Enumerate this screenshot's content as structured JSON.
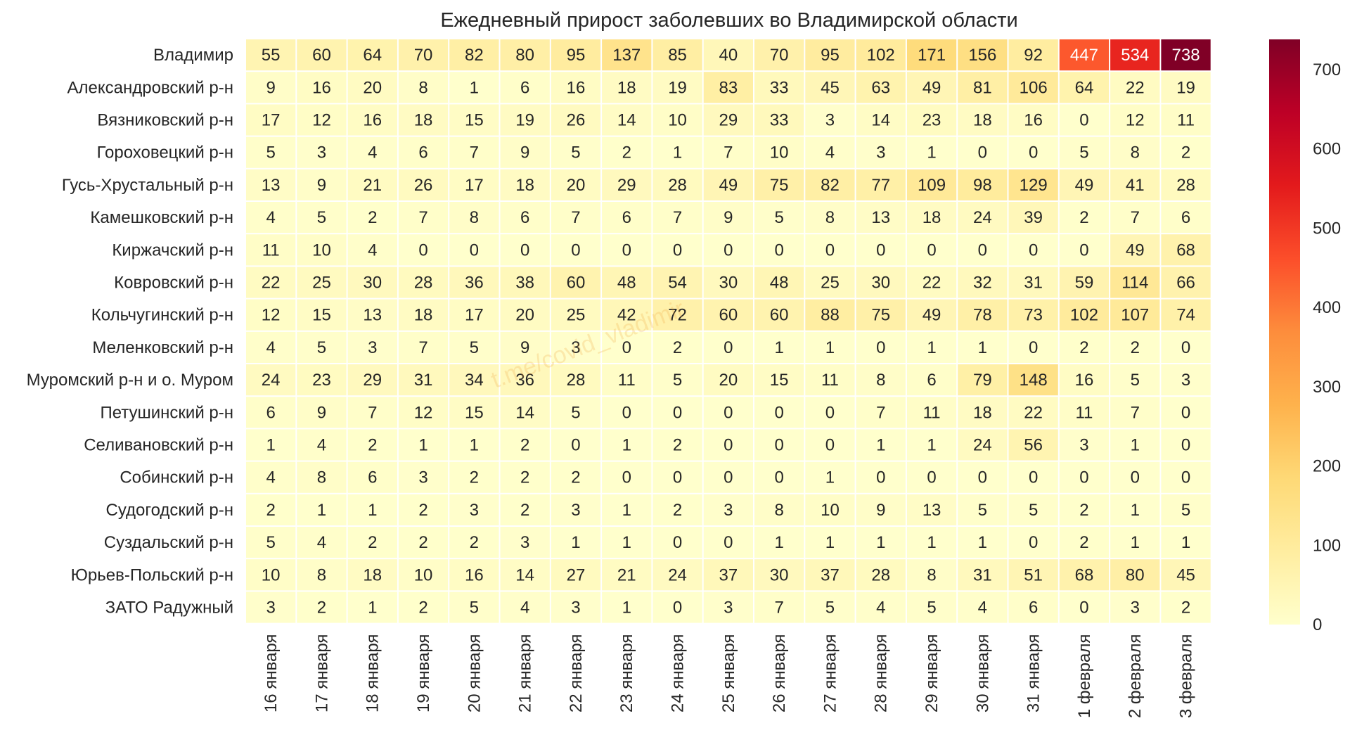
{
  "chart_data": {
    "type": "heatmap",
    "title": "Ежедневный прирост заболевших во Владимирской области",
    "watermark": "t.me/covid_vladimir",
    "rows": [
      "Владимир",
      "Александровский р-н",
      "Вязниковский р-н",
      "Гороховецкий р-н",
      "Гусь-Хрустальный р-н",
      "Камешковский р-н",
      "Киржачский р-н",
      "Ковровский р-н",
      "Кольчугинский р-н",
      "Меленковский р-н",
      "Муромский р-н и о. Муром",
      "Петушинский р-н",
      "Селивановский р-н",
      "Собинский р-н",
      "Судогодский р-н",
      "Суздальский р-н",
      "Юрьев-Польский р-н",
      "ЗАТО Радужный"
    ],
    "columns": [
      "16 января",
      "17 января",
      "18 января",
      "19 января",
      "20 января",
      "21 января",
      "22 января",
      "23 января",
      "24 января",
      "25 января",
      "26 января",
      "27 января",
      "28 января",
      "29 января",
      "30 января",
      "31 января",
      "1 февраля",
      "2 февраля",
      "3 февраля"
    ],
    "values": [
      [
        55,
        60,
        64,
        70,
        82,
        80,
        95,
        137,
        85,
        40,
        70,
        95,
        102,
        171,
        156,
        92,
        447,
        534,
        738
      ],
      [
        9,
        16,
        20,
        8,
        1,
        6,
        16,
        18,
        19,
        83,
        33,
        45,
        63,
        49,
        81,
        106,
        64,
        22,
        19
      ],
      [
        17,
        12,
        16,
        18,
        15,
        19,
        26,
        14,
        10,
        29,
        33,
        3,
        14,
        23,
        18,
        16,
        0,
        12,
        11
      ],
      [
        5,
        3,
        4,
        6,
        7,
        9,
        5,
        2,
        1,
        7,
        10,
        4,
        3,
        1,
        0,
        0,
        5,
        8,
        2
      ],
      [
        13,
        9,
        21,
        26,
        17,
        18,
        20,
        29,
        28,
        49,
        75,
        82,
        77,
        109,
        98,
        129,
        49,
        41,
        28
      ],
      [
        4,
        5,
        2,
        7,
        8,
        6,
        7,
        6,
        7,
        9,
        5,
        8,
        13,
        18,
        24,
        39,
        2,
        7,
        6
      ],
      [
        11,
        10,
        4,
        0,
        0,
        0,
        0,
        0,
        0,
        0,
        0,
        0,
        0,
        0,
        0,
        0,
        0,
        49,
        68
      ],
      [
        22,
        25,
        30,
        28,
        36,
        38,
        60,
        48,
        54,
        30,
        48,
        25,
        30,
        22,
        32,
        31,
        59,
        114,
        66
      ],
      [
        12,
        15,
        13,
        18,
        17,
        20,
        25,
        42,
        72,
        60,
        60,
        88,
        75,
        49,
        78,
        73,
        102,
        107,
        74
      ],
      [
        4,
        5,
        3,
        7,
        5,
        9,
        3,
        0,
        2,
        0,
        1,
        1,
        0,
        1,
        1,
        0,
        2,
        2,
        0
      ],
      [
        24,
        23,
        29,
        31,
        34,
        36,
        28,
        11,
        5,
        20,
        15,
        11,
        8,
        6,
        79,
        148,
        16,
        5,
        3
      ],
      [
        6,
        9,
        7,
        12,
        15,
        14,
        5,
        0,
        0,
        0,
        0,
        0,
        7,
        11,
        18,
        22,
        11,
        7,
        0
      ],
      [
        1,
        4,
        2,
        1,
        1,
        2,
        0,
        1,
        2,
        0,
        0,
        0,
        1,
        1,
        24,
        56,
        3,
        1,
        0
      ],
      [
        4,
        8,
        6,
        3,
        2,
        2,
        2,
        0,
        0,
        0,
        0,
        1,
        0,
        0,
        0,
        0,
        0,
        0,
        0
      ],
      [
        2,
        1,
        1,
        2,
        3,
        2,
        3,
        1,
        2,
        3,
        8,
        10,
        9,
        13,
        5,
        5,
        2,
        1,
        5
      ],
      [
        5,
        4,
        2,
        2,
        2,
        3,
        1,
        1,
        0,
        0,
        1,
        1,
        1,
        1,
        1,
        0,
        2,
        1,
        1
      ],
      [
        10,
        8,
        18,
        10,
        16,
        14,
        27,
        21,
        24,
        37,
        30,
        37,
        28,
        8,
        31,
        51,
        68,
        80,
        45
      ],
      [
        3,
        2,
        1,
        2,
        5,
        4,
        3,
        1,
        0,
        3,
        7,
        5,
        4,
        5,
        4,
        6,
        0,
        3,
        2
      ]
    ],
    "colorbar": {
      "range": [
        0,
        738
      ],
      "ticks": [
        0,
        100,
        200,
        300,
        400,
        500,
        600,
        700
      ],
      "colormap": "YlOrRd",
      "colors": [
        "#ffffcc",
        "#ffeda0",
        "#fed976",
        "#feb24c",
        "#fd8d3c",
        "#fc4e2a",
        "#e31a1c",
        "#bd0026",
        "#800026"
      ]
    }
  }
}
